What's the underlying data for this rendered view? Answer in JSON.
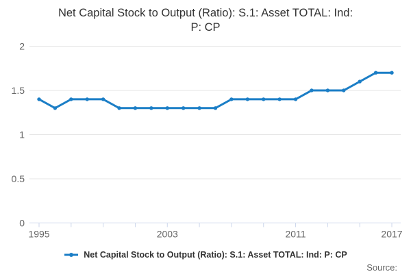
{
  "title": {
    "line1": "Net Capital Stock to Output (Ratio): S.1: Asset TOTAL: Ind:",
    "line2": "P: CP"
  },
  "legend": {
    "label": "Net Capital Stock to Output (Ratio): S.1: Asset TOTAL: Ind: P: CP"
  },
  "footer": {
    "source_label": "Source:"
  },
  "colors": {
    "line": "#1b7ec6",
    "grid": "#e6e6e6",
    "axis": "#ccd6eb",
    "label": "#666666",
    "title": "#333333"
  },
  "chart_data": {
    "type": "line",
    "title": "Net Capital Stock to Output (Ratio): S.1: Asset TOTAL: Ind: P: CP",
    "x": [
      1995,
      1996,
      1997,
      1998,
      1999,
      2000,
      2001,
      2002,
      2003,
      2004,
      2005,
      2006,
      2007,
      2008,
      2009,
      2010,
      2011,
      2012,
      2013,
      2014,
      2015,
      2016,
      2017
    ],
    "series": [
      {
        "name": "Net Capital Stock to Output (Ratio): S.1: Asset TOTAL: Ind: P: CP",
        "values": [
          1.4,
          1.3,
          1.4,
          1.4,
          1.4,
          1.3,
          1.3,
          1.3,
          1.3,
          1.3,
          1.3,
          1.3,
          1.4,
          1.4,
          1.4,
          1.4,
          1.4,
          1.5,
          1.5,
          1.5,
          1.6,
          1.7,
          1.7
        ]
      }
    ],
    "xlabel": "",
    "ylabel": "",
    "ylim": [
      0,
      2
    ],
    "yticks": [
      0,
      0.5,
      1,
      1.5,
      2
    ],
    "ytick_labels": [
      "0",
      "0.5",
      "1",
      "1.5",
      "2"
    ],
    "xticks": [
      1995,
      1997,
      1999,
      2001,
      2003,
      2005,
      2007,
      2009,
      2011,
      2013,
      2015,
      2017
    ],
    "xtick_labels": [
      {
        "x": 1995,
        "label": "1995"
      },
      {
        "x": 2003,
        "label": "2003"
      },
      {
        "x": 2011,
        "label": "2011"
      },
      {
        "x": 2017,
        "label": "2017"
      }
    ],
    "grid": true,
    "legend_position": "bottom"
  }
}
